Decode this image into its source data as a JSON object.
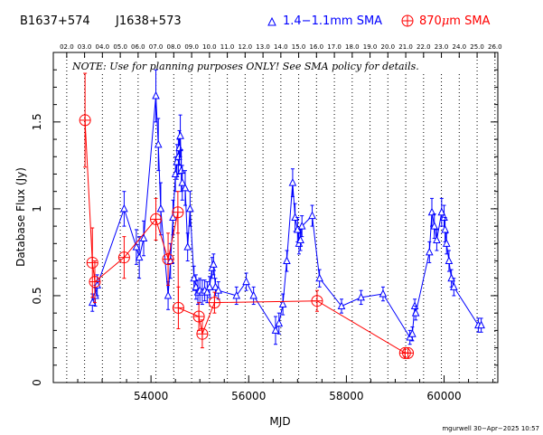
{
  "header": {
    "source_name": "B1637+574",
    "alt_name": "J1638+573",
    "legend_blue": "1.4−1.1mm SMA",
    "legend_red_prefix": "870",
    "legend_red_mu": "μ",
    "legend_red_suffix": "m SMA"
  },
  "note": "NOTE: Use for planning purposes ONLY!  See SMA policy for details.",
  "credit": "mgurwell 30−Apr−2025 10:57",
  "colors": {
    "blue": "#0000ff",
    "red": "#ff0000",
    "axis": "#000000"
  },
  "chart_data": {
    "type": "scatter",
    "xlabel": "MJD",
    "ylabel": "Database Flux (Jy)",
    "xlim": [
      52000,
      61100
    ],
    "ylim": [
      0,
      1.9
    ],
    "x_ticks": [
      54000,
      56000,
      58000,
      60000
    ],
    "x_tick_labels": [
      "54000",
      "56000",
      "58000",
      "60000"
    ],
    "y_ticks": [
      0,
      0.5,
      1,
      1.5
    ],
    "y_tick_labels": [
      "0",
      "0.5",
      "1",
      "1.5"
    ],
    "year_ticks": [
      {
        "label": "02.0",
        "mjd": 52275
      },
      {
        "label": "03.0",
        "mjd": 52640
      },
      {
        "label": "04.0",
        "mjd": 53005
      },
      {
        "label": "05.0",
        "mjd": 53371
      },
      {
        "label": "06.0",
        "mjd": 53736
      },
      {
        "label": "07.0",
        "mjd": 54101
      },
      {
        "label": "08.0",
        "mjd": 54466
      },
      {
        "label": "09.0",
        "mjd": 54832
      },
      {
        "label": "10.0",
        "mjd": 55197
      },
      {
        "label": "11.0",
        "mjd": 55562
      },
      {
        "label": "12.0",
        "mjd": 55927
      },
      {
        "label": "13.0",
        "mjd": 56293
      },
      {
        "label": "14.0",
        "mjd": 56658
      },
      {
        "label": "15.0",
        "mjd": 57023
      },
      {
        "label": "16.0",
        "mjd": 57388
      },
      {
        "label": "17.0",
        "mjd": 57754
      },
      {
        "label": "18.0",
        "mjd": 58119
      },
      {
        "label": "19.0",
        "mjd": 58484
      },
      {
        "label": "20.0",
        "mjd": 58849
      },
      {
        "label": "21.0",
        "mjd": 59215
      },
      {
        "label": "22.0",
        "mjd": 59580
      },
      {
        "label": "23.0",
        "mjd": 59945
      },
      {
        "label": "24.0",
        "mjd": 60310
      },
      {
        "label": "25.0",
        "mjd": 60676
      },
      {
        "label": "26.0",
        "mjd": 61041
      }
    ],
    "grid": "vertical dotted lines at year boundaries",
    "series": [
      {
        "name": "1.4−1.1mm SMA",
        "color": "#0000ff",
        "marker": "triangle",
        "points": [
          [
            52800,
            0.46,
            0.05
          ],
          [
            52860,
            0.5,
            0.06
          ],
          [
            52900,
            0.56,
            0.06
          ],
          [
            53450,
            1.0,
            0.1
          ],
          [
            53700,
            0.78,
            0.1
          ],
          [
            53760,
            0.72,
            0.12
          ],
          [
            53850,
            0.83,
            0.1
          ],
          [
            54100,
            1.65,
            0.15
          ],
          [
            54150,
            1.37,
            0.15
          ],
          [
            54200,
            1.0,
            0.15
          ],
          [
            54350,
            0.5,
            0.08
          ],
          [
            54400,
            0.7,
            0.1
          ],
          [
            54450,
            0.95,
            0.1
          ],
          [
            54500,
            1.2,
            0.1
          ],
          [
            54530,
            1.27,
            0.1
          ],
          [
            54560,
            1.3,
            0.1
          ],
          [
            54580,
            1.35,
            0.1
          ],
          [
            54600,
            1.42,
            0.12
          ],
          [
            54620,
            1.22,
            0.12
          ],
          [
            54640,
            1.15,
            0.1
          ],
          [
            54700,
            1.12,
            0.1
          ],
          [
            54750,
            0.78,
            0.08
          ],
          [
            54800,
            1.0,
            0.1
          ],
          [
            54880,
            0.6,
            0.07
          ],
          [
            54920,
            0.55,
            0.07
          ],
          [
            54960,
            0.52,
            0.07
          ],
          [
            55000,
            0.53,
            0.07
          ],
          [
            55050,
            0.52,
            0.07
          ],
          [
            55100,
            0.53,
            0.06
          ],
          [
            55150,
            0.52,
            0.06
          ],
          [
            55200,
            0.55,
            0.06
          ],
          [
            55250,
            0.66,
            0.06
          ],
          [
            55280,
            0.68,
            0.06
          ],
          [
            55320,
            0.55,
            0.05
          ],
          [
            55380,
            0.53,
            0.05
          ],
          [
            55750,
            0.5,
            0.05
          ],
          [
            55950,
            0.58,
            0.05
          ],
          [
            56100,
            0.5,
            0.05
          ],
          [
            56550,
            0.3,
            0.08
          ],
          [
            56620,
            0.34,
            0.06
          ],
          [
            56700,
            0.45,
            0.06
          ],
          [
            56780,
            0.7,
            0.06
          ],
          [
            56900,
            1.15,
            0.08
          ],
          [
            56950,
            0.95,
            0.08
          ],
          [
            57000,
            0.88,
            0.07
          ],
          [
            57030,
            0.8,
            0.06
          ],
          [
            57060,
            0.82,
            0.06
          ],
          [
            57090,
            0.9,
            0.06
          ],
          [
            57300,
            0.96,
            0.06
          ],
          [
            57450,
            0.6,
            0.05
          ],
          [
            57900,
            0.44,
            0.04
          ],
          [
            58300,
            0.49,
            0.04
          ],
          [
            58750,
            0.51,
            0.04
          ],
          [
            59300,
            0.26,
            0.04
          ],
          [
            59350,
            0.28,
            0.04
          ],
          [
            59400,
            0.44,
            0.04
          ],
          [
            59420,
            0.4,
            0.04
          ],
          [
            59700,
            0.75,
            0.06
          ],
          [
            59750,
            0.98,
            0.08
          ],
          [
            59800,
            0.9,
            0.07
          ],
          [
            59850,
            0.82,
            0.06
          ],
          [
            59950,
            0.98,
            0.08
          ],
          [
            60000,
            0.95,
            0.07
          ],
          [
            60020,
            0.88,
            0.07
          ],
          [
            60050,
            0.8,
            0.06
          ],
          [
            60100,
            0.7,
            0.06
          ],
          [
            60150,
            0.6,
            0.05
          ],
          [
            60200,
            0.55,
            0.05
          ],
          [
            60700,
            0.33,
            0.04
          ],
          [
            60760,
            0.33,
            0.04
          ]
        ]
      },
      {
        "name": "870μm SMA",
        "color": "#ff0000",
        "marker": "circle-plus",
        "points": [
          [
            52650,
            1.51,
            0.27
          ],
          [
            52800,
            0.69,
            0.2
          ],
          [
            52850,
            0.58,
            0.12
          ],
          [
            53450,
            0.72,
            0.12
          ],
          [
            54100,
            0.94,
            0.12
          ],
          [
            54350,
            0.71,
            0.15
          ],
          [
            54550,
            0.98,
            0.12
          ],
          [
            54560,
            0.43,
            0.12
          ],
          [
            54980,
            0.38,
            0.08
          ],
          [
            55050,
            0.28,
            0.08
          ],
          [
            55300,
            0.46,
            0.06
          ],
          [
            57400,
            0.47,
            0.06
          ],
          [
            59200,
            0.17,
            0.03
          ],
          [
            59260,
            0.17,
            0.03
          ]
        ]
      }
    ]
  }
}
